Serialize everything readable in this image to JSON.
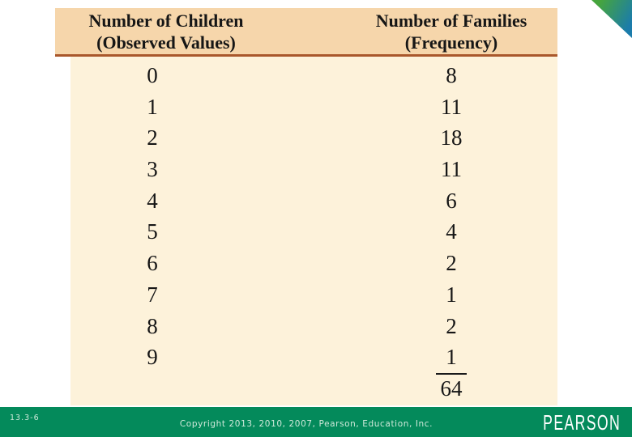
{
  "table": {
    "header": {
      "col1_line1": "Number of Children",
      "col1_line2": "(Observed Values)",
      "col2_line1": "Number of Families",
      "col2_line2": "(Frequency)"
    },
    "rows": [
      {
        "observed": "0",
        "frequency": "8"
      },
      {
        "observed": "1",
        "frequency": "11"
      },
      {
        "observed": "2",
        "frequency": "18"
      },
      {
        "observed": "3",
        "frequency": "11"
      },
      {
        "observed": "4",
        "frequency": "6"
      },
      {
        "observed": "5",
        "frequency": "4"
      },
      {
        "observed": "6",
        "frequency": "2"
      },
      {
        "observed": "7",
        "frequency": "1"
      },
      {
        "observed": "8",
        "frequency": "2"
      },
      {
        "observed": "9",
        "frequency": "1",
        "frequency_underlined": true
      }
    ],
    "total_frequency": "64"
  },
  "footer": {
    "slide_number": "13.3-6",
    "copyright": "Copyright 2013, 2010, 2007, Pearson, Education, Inc.",
    "brand": "PEARSON"
  },
  "chart_data": {
    "type": "table",
    "columns": [
      "Number of Children (Observed Values)",
      "Number of Families (Frequency)"
    ],
    "observed_values": [
      0,
      1,
      2,
      3,
      4,
      5,
      6,
      7,
      8,
      9
    ],
    "frequencies": [
      8,
      11,
      18,
      11,
      6,
      4,
      2,
      1,
      2,
      1
    ],
    "total": 64
  },
  "colors": {
    "footer-green": "#048a5b",
    "header-tan": "#f6d6ab",
    "body-cream": "#fdf2da",
    "header-rule": "#a9572b",
    "footer-text": "#cfe9da",
    "tri-green": "#46a53d",
    "tri-blue": "#1b7cab"
  }
}
